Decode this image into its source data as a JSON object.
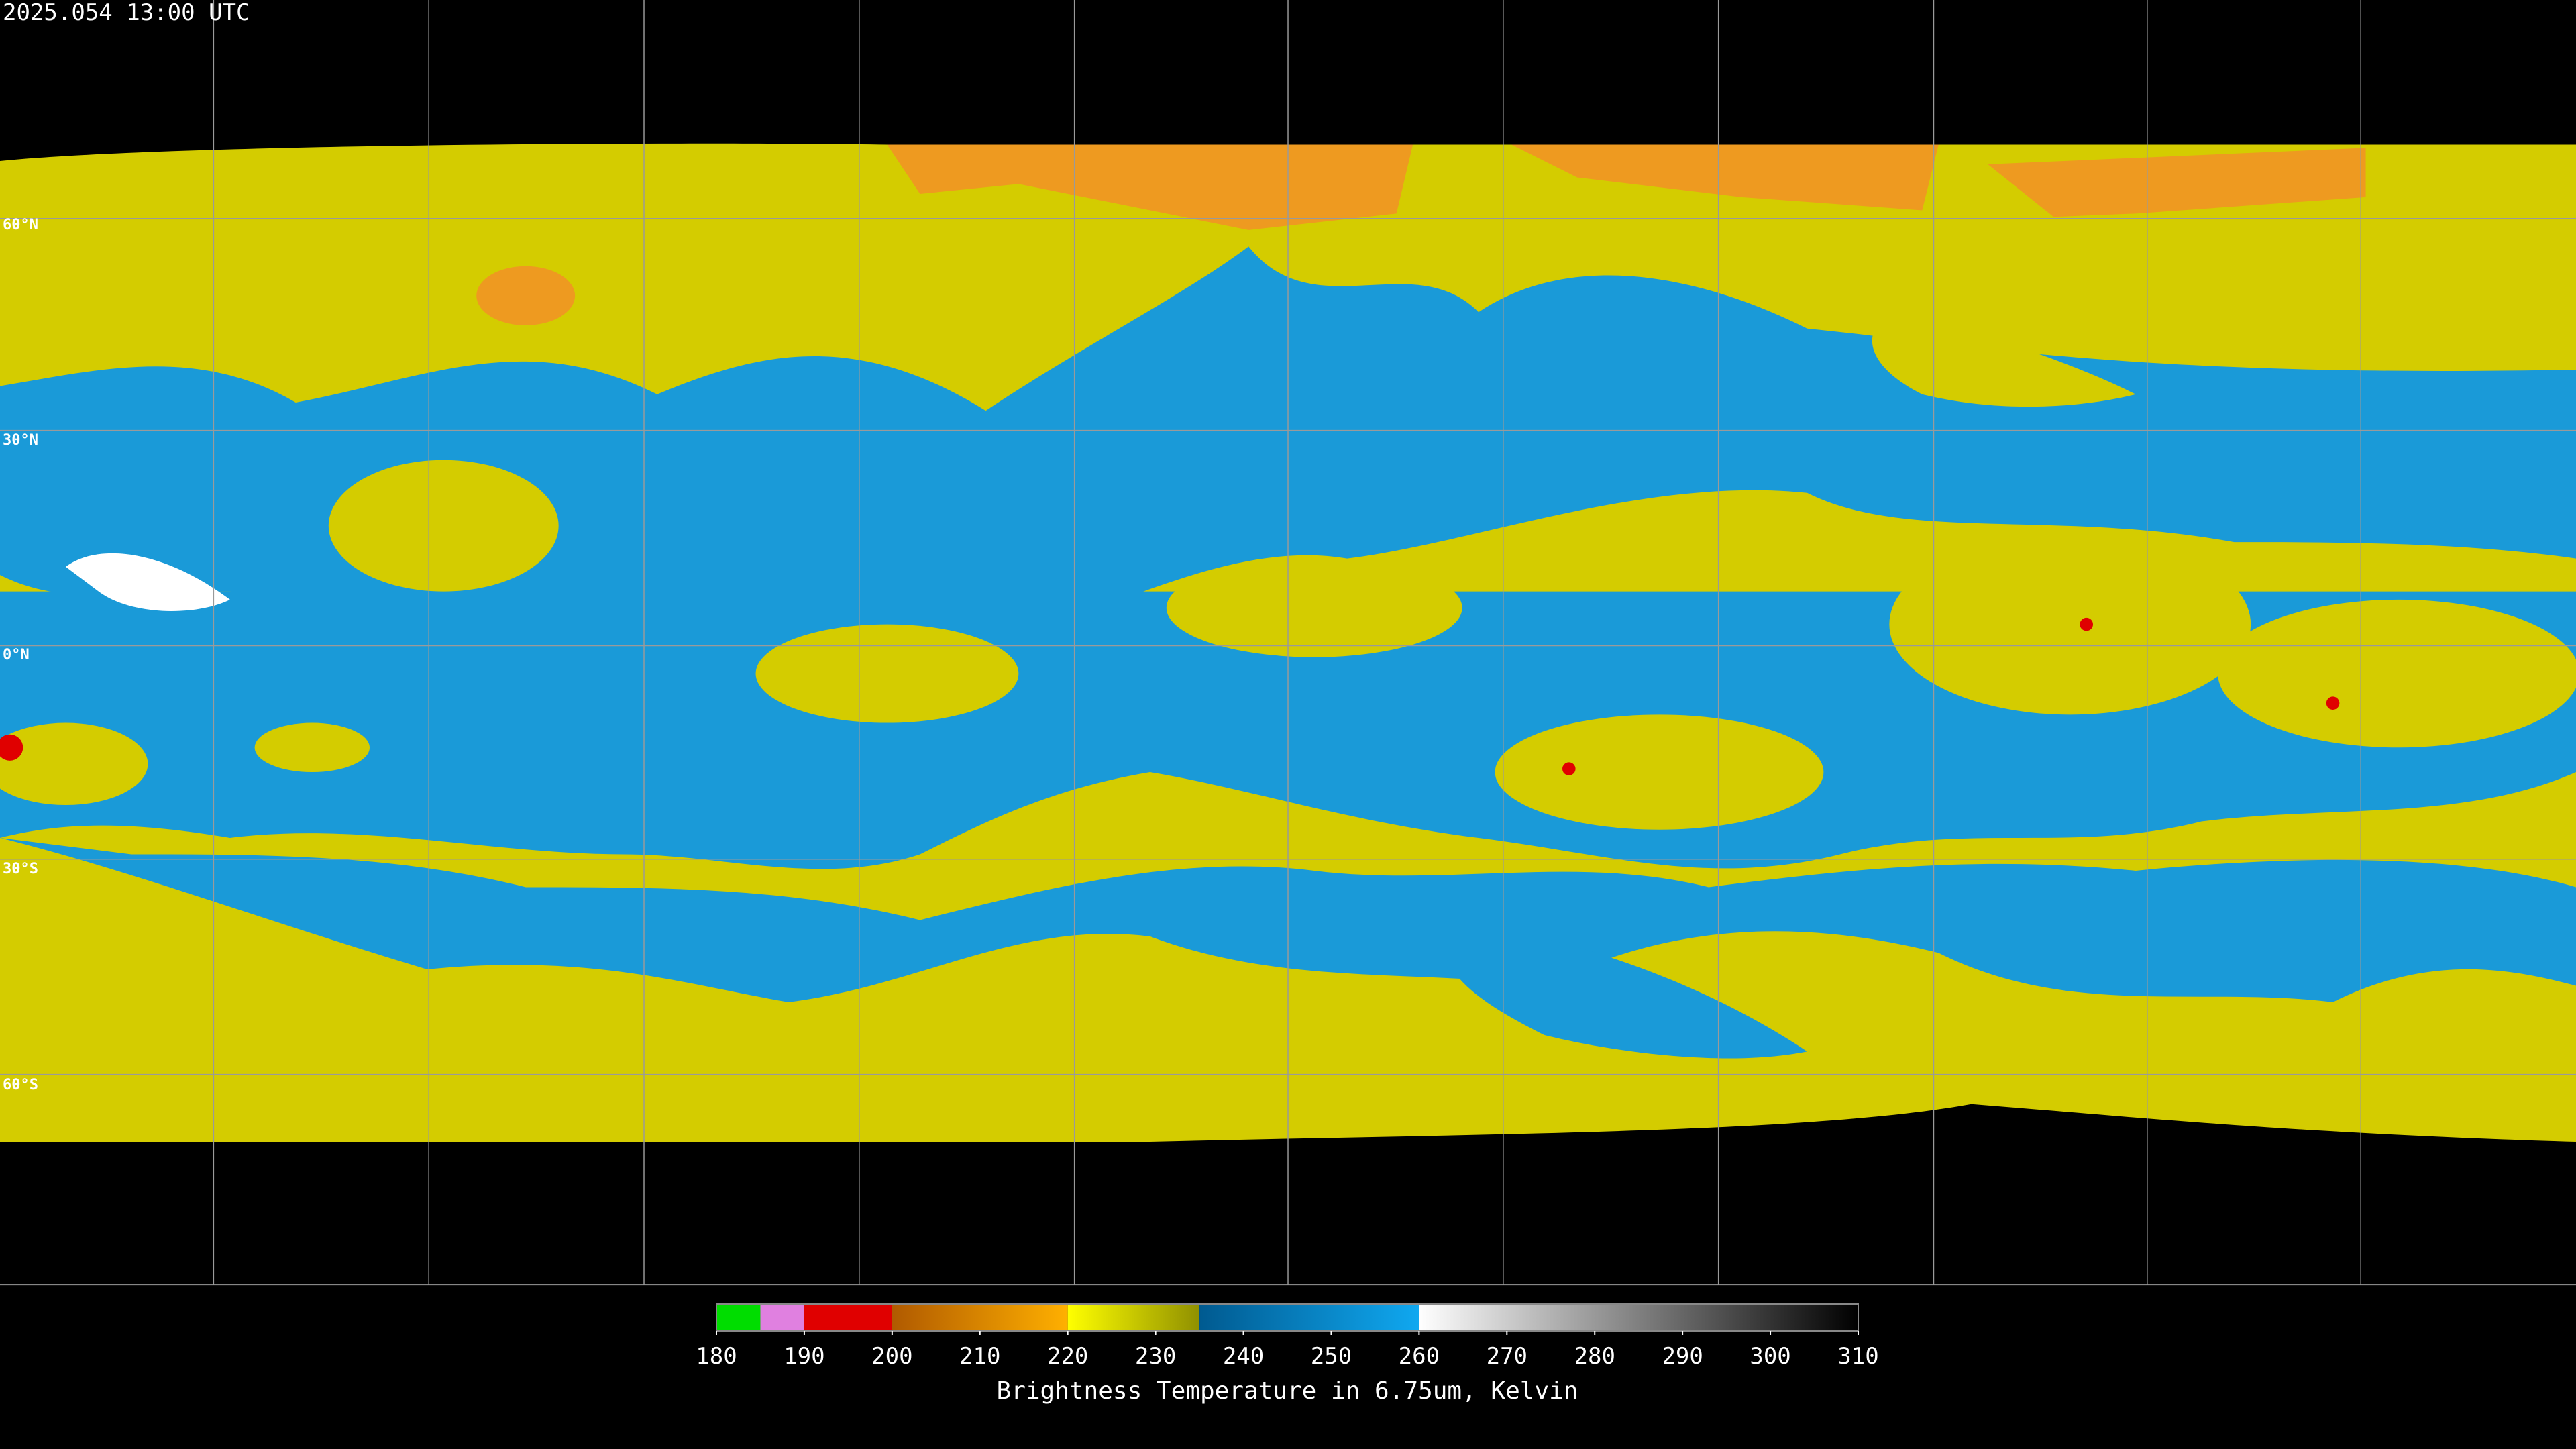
{
  "header": {
    "timestamp": "2025.054 13:00 UTC"
  },
  "map": {
    "latitude_labels": [
      "60°N",
      "30°N",
      "0°N",
      "30°S",
      "60°S"
    ]
  },
  "colorbar": {
    "title": "Brightness Temperature in 6.75um, Kelvin",
    "range": [
      180,
      310
    ],
    "ticks": [
      180,
      190,
      200,
      210,
      220,
      230,
      240,
      250,
      260,
      270,
      280,
      290,
      300,
      310
    ],
    "segments": [
      {
        "from": 180,
        "to": 185,
        "start_color": "#00dd00",
        "end_color": "#00dd00"
      },
      {
        "from": 185,
        "to": 190,
        "start_color": "#e080e0",
        "end_color": "#e080e0"
      },
      {
        "from": 190,
        "to": 200,
        "start_color": "#e00000",
        "end_color": "#e00000"
      },
      {
        "from": 200,
        "to": 220,
        "start_color": "#b05a00",
        "end_color": "#ffb000"
      },
      {
        "from": 220,
        "to": 235,
        "start_color": "#ffff00",
        "end_color": "#909000"
      },
      {
        "from": 235,
        "to": 260,
        "start_color": "#005a90",
        "end_color": "#10a8f0"
      },
      {
        "from": 260,
        "to": 310,
        "start_color": "#ffffff",
        "end_color": "#000000"
      }
    ]
  }
}
